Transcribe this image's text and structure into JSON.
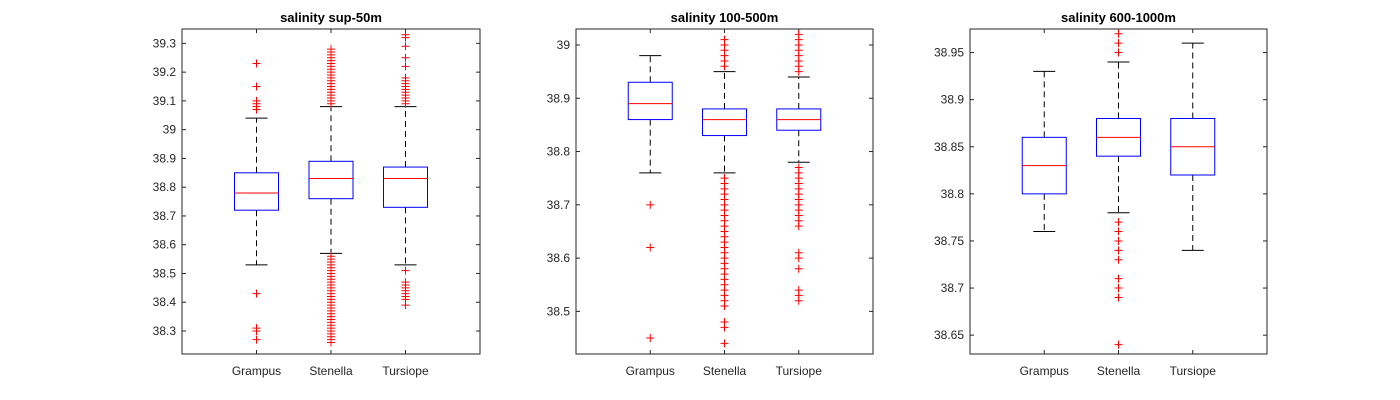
{
  "chart_data": [
    {
      "type": "box",
      "title": "salinity sup-50m",
      "xlabel": "",
      "ylabel": "",
      "categories": [
        "Grampus",
        "Stenella",
        "Tursiope"
      ],
      "ylim": [
        38.22,
        39.35
      ],
      "yticks": [
        38.3,
        38.4,
        38.5,
        38.6,
        38.7,
        38.8,
        38.9,
        39,
        39.1,
        39.2,
        39.3
      ],
      "ytick_labels": [
        "38.3",
        "38.4",
        "38.5",
        "38.6",
        "38.7",
        "38.8",
        "38.9",
        "39",
        "39.1",
        "39.2",
        "39.3"
      ],
      "boxes": [
        {
          "category": "Grampus",
          "whisker_low": 38.53,
          "q1": 38.72,
          "median": 38.78,
          "q3": 38.85,
          "whisker_high": 39.04,
          "outliers": [
            38.27,
            38.3,
            38.31,
            38.43,
            39.07,
            39.08,
            39.09,
            39.1,
            39.15,
            39.23
          ]
        },
        {
          "category": "Stenella",
          "whisker_low": 38.57,
          "q1": 38.76,
          "median": 38.83,
          "q3": 38.89,
          "whisker_high": 39.08,
          "outliers": [
            38.26,
            38.27,
            38.28,
            38.29,
            38.3,
            38.31,
            38.32,
            38.33,
            38.34,
            38.35,
            38.36,
            38.37,
            38.38,
            38.39,
            38.4,
            38.41,
            38.42,
            38.43,
            38.44,
            38.45,
            38.46,
            38.47,
            38.48,
            38.49,
            38.5,
            38.51,
            38.52,
            38.53,
            38.54,
            38.55,
            38.56,
            39.09,
            39.1,
            39.11,
            39.12,
            39.13,
            39.14,
            39.15,
            39.16,
            39.17,
            39.18,
            39.19,
            39.2,
            39.21,
            39.22,
            39.23,
            39.24,
            39.25,
            39.26,
            39.27,
            39.28
          ]
        },
        {
          "category": "Tursiope",
          "whisker_low": 38.53,
          "q1": 38.73,
          "median": 38.83,
          "q3": 38.87,
          "whisker_high": 39.08,
          "outliers": [
            38.39,
            38.41,
            38.42,
            38.43,
            38.44,
            38.45,
            38.46,
            38.47,
            38.51,
            39.09,
            39.1,
            39.11,
            39.12,
            39.13,
            39.14,
            39.15,
            39.16,
            39.17,
            39.18,
            39.22,
            39.25,
            39.29,
            39.32,
            39.33
          ]
        }
      ]
    },
    {
      "type": "box",
      "title": "salinity 100-500m",
      "xlabel": "",
      "ylabel": "",
      "categories": [
        "Grampus",
        "Stenella",
        "Tursiope"
      ],
      "ylim": [
        38.42,
        39.03
      ],
      "yticks": [
        38.5,
        38.6,
        38.7,
        38.8,
        38.9,
        39
      ],
      "ytick_labels": [
        "38.5",
        "38.6",
        "38.7",
        "38.8",
        "38.9",
        "39"
      ],
      "boxes": [
        {
          "category": "Grampus",
          "whisker_low": 38.76,
          "q1": 38.86,
          "median": 38.89,
          "q3": 38.93,
          "whisker_high": 38.98,
          "outliers": [
            38.45,
            38.62,
            38.7
          ]
        },
        {
          "category": "Stenella",
          "whisker_low": 38.76,
          "q1": 38.83,
          "median": 38.86,
          "q3": 38.88,
          "whisker_high": 38.95,
          "outliers": [
            38.44,
            38.47,
            38.48,
            38.51,
            38.52,
            38.53,
            38.54,
            38.55,
            38.56,
            38.57,
            38.58,
            38.59,
            38.6,
            38.61,
            38.62,
            38.63,
            38.64,
            38.65,
            38.66,
            38.67,
            38.68,
            38.69,
            38.7,
            38.71,
            38.72,
            38.73,
            38.74,
            38.75,
            38.96,
            38.97,
            38.98,
            38.99,
            39.0,
            39.01
          ]
        },
        {
          "category": "Tursiope",
          "whisker_low": 38.78,
          "q1": 38.84,
          "median": 38.86,
          "q3": 38.88,
          "whisker_high": 38.94,
          "outliers": [
            38.52,
            38.53,
            38.54,
            38.58,
            38.6,
            38.61,
            38.66,
            38.67,
            38.68,
            38.69,
            38.7,
            38.71,
            38.72,
            38.73,
            38.74,
            38.75,
            38.76,
            38.77,
            38.95,
            38.96,
            38.97,
            38.98,
            38.99,
            39.0,
            39.01,
            39.02
          ]
        }
      ]
    },
    {
      "type": "box",
      "title": "salinity 600-1000m",
      "xlabel": "",
      "ylabel": "",
      "categories": [
        "Grampus",
        "Stenella",
        "Tursiope"
      ],
      "ylim": [
        38.63,
        38.975
      ],
      "yticks": [
        38.65,
        38.7,
        38.75,
        38.8,
        38.85,
        38.9,
        38.95
      ],
      "ytick_labels": [
        "38.65",
        "38.7",
        "38.75",
        "38.8",
        "38.85",
        "38.9",
        "38.95"
      ],
      "boxes": [
        {
          "category": "Grampus",
          "whisker_low": 38.76,
          "q1": 38.8,
          "median": 38.83,
          "q3": 38.86,
          "whisker_high": 38.93,
          "outliers": []
        },
        {
          "category": "Stenella",
          "whisker_low": 38.78,
          "q1": 38.84,
          "median": 38.86,
          "q3": 38.88,
          "whisker_high": 38.94,
          "outliers": [
            38.64,
            38.69,
            38.7,
            38.71,
            38.73,
            38.74,
            38.75,
            38.76,
            38.77,
            38.95,
            38.96,
            38.97
          ]
        },
        {
          "category": "Tursiope",
          "whisker_low": 38.74,
          "q1": 38.82,
          "median": 38.85,
          "q3": 38.88,
          "whisker_high": 38.96,
          "outliers": []
        }
      ]
    }
  ],
  "colors": {
    "box": "#0000ff",
    "median": "#ff0000",
    "whisker": "#000000",
    "outlier": "#ff0000",
    "axes": "#262626"
  }
}
